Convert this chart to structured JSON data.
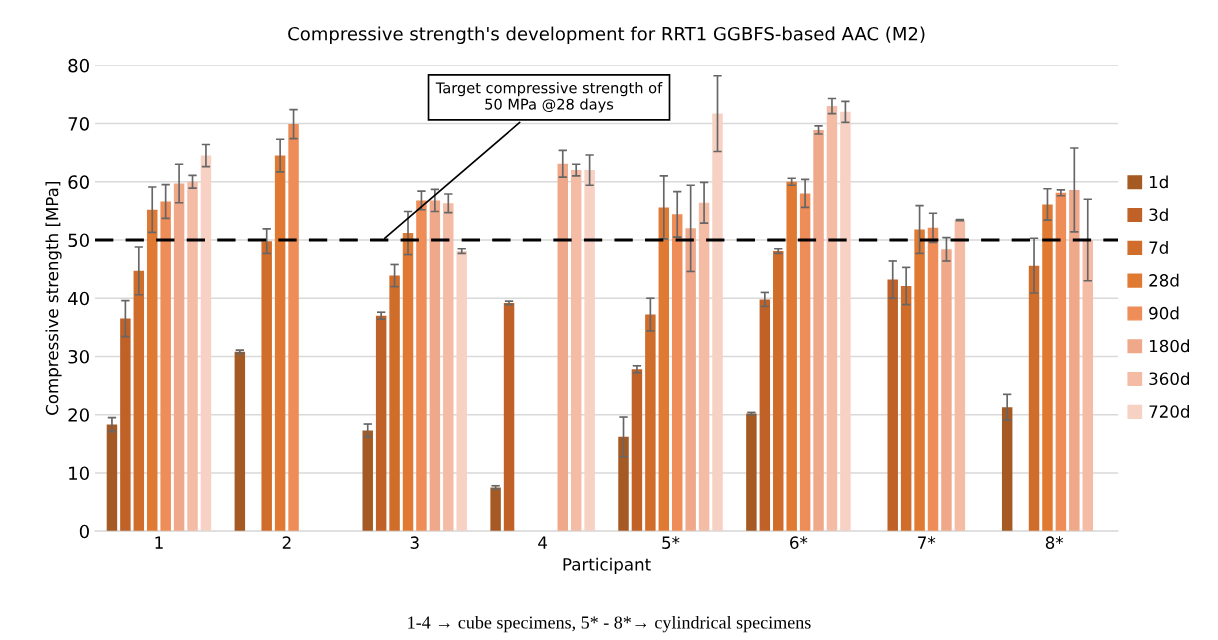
{
  "chart_data": {
    "type": "bar",
    "title": "Compressive strength's development for RRT1 GGBFS-based AAC (M2)",
    "xlabel": "Participant",
    "ylabel": "Compressive strength [MPa]",
    "categories": [
      "1",
      "2",
      "3",
      "4",
      "5*",
      "6*",
      "7*",
      "8*"
    ],
    "ylim": [
      0,
      80
    ],
    "yticks": [
      0,
      10,
      20,
      30,
      40,
      50,
      60,
      70,
      80
    ],
    "grid": "y",
    "legend": "right",
    "series": [
      {
        "name": "1d",
        "color": "#a65a23",
        "values": [
          18.3,
          30.8,
          17.3,
          7.5,
          16.2,
          20.2,
          null,
          21.3
        ],
        "errors": [
          1.2,
          0.3,
          1.1,
          0.3,
          3.4,
          0.2,
          null,
          2.2
        ]
      },
      {
        "name": "3d",
        "color": "#c06228",
        "values": [
          36.5,
          null,
          37.0,
          39.2,
          27.8,
          39.8,
          43.2,
          null
        ],
        "errors": [
          3.1,
          null,
          0.6,
          0.3,
          0.6,
          1.2,
          3.2,
          null
        ]
      },
      {
        "name": "7d",
        "color": "#d16d2b",
        "values": [
          44.7,
          49.8,
          43.9,
          null,
          37.2,
          48.1,
          42.1,
          45.6
        ],
        "errors": [
          4.1,
          2.1,
          1.9,
          null,
          2.8,
          0.4,
          3.2,
          4.7
        ]
      },
      {
        "name": "28d",
        "color": "#e07a32",
        "values": [
          55.2,
          64.5,
          51.2,
          null,
          55.6,
          60.0,
          51.8,
          56.1
        ],
        "errors": [
          3.9,
          2.8,
          3.7,
          null,
          5.4,
          0.6,
          4.1,
          2.7
        ]
      },
      {
        "name": "90d",
        "color": "#ee8d58",
        "values": [
          56.6,
          69.9,
          56.8,
          null,
          54.4,
          58.0,
          52.1,
          58.1
        ],
        "errors": [
          2.9,
          2.5,
          1.6,
          null,
          3.9,
          2.4,
          2.5,
          0.5
        ]
      },
      {
        "name": "180d",
        "color": "#f0a88a",
        "values": [
          59.7,
          null,
          56.8,
          63.1,
          52.0,
          68.9,
          48.4,
          58.6
        ],
        "errors": [
          3.3,
          null,
          1.9,
          2.3,
          7.4,
          0.7,
          2.0,
          7.2
        ]
      },
      {
        "name": "360d",
        "color": "#f4bba5",
        "values": [
          60.0,
          null,
          56.3,
          62.0,
          56.4,
          73.0,
          53.4,
          50.0
        ],
        "errors": [
          1.1,
          null,
          1.6,
          1.0,
          3.5,
          1.3,
          0.1,
          7.0
        ]
      },
      {
        "name": "720d",
        "color": "#f7d1c3",
        "values": [
          64.5,
          null,
          48.1,
          62.0,
          71.7,
          72.0,
          null,
          null
        ],
        "errors": [
          1.9,
          null,
          0.4,
          2.6,
          6.5,
          1.8,
          null,
          null
        ]
      }
    ],
    "ref_lines": [
      {
        "axis": "y",
        "value": 50,
        "label": "Target compressive strength of\n50 MPa @28 days",
        "color": "#000000",
        "line_style": "dashed"
      }
    ],
    "annotations": [
      "1-4 → cube specimens, 5* - 8*→ cylindrical specimens"
    ]
  }
}
